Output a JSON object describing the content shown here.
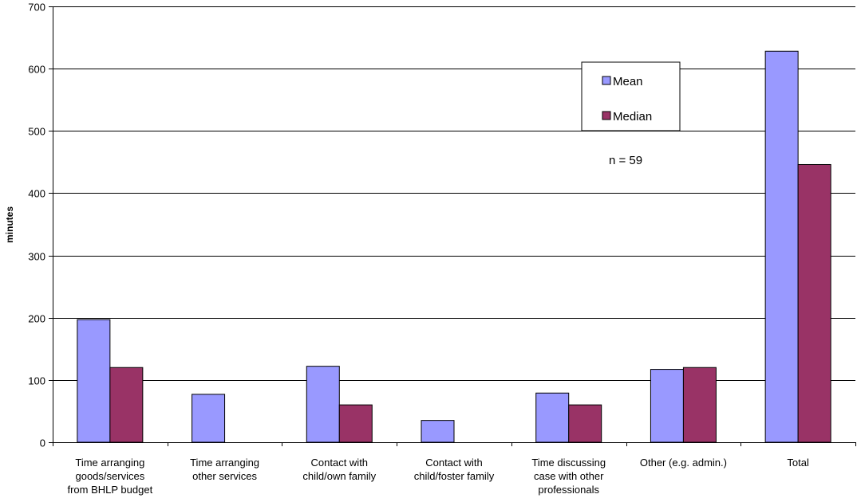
{
  "chart_data": {
    "type": "bar",
    "title": "",
    "xlabel": "",
    "ylabel": "minutes",
    "ylim": [
      0,
      700
    ],
    "yticks": [
      0,
      100,
      200,
      300,
      400,
      500,
      600,
      700
    ],
    "grid": true,
    "legend_position": "top-right",
    "categories": [
      [
        "Time arranging",
        "goods/services",
        "from BHLP budget"
      ],
      [
        "Time arranging",
        "other services"
      ],
      [
        "Contact with",
        "child/own family"
      ],
      [
        "Contact with",
        "child/foster family"
      ],
      [
        "Time discussing",
        "case with other",
        "professionals"
      ],
      [
        "Other (e.g. admin.)"
      ],
      [
        "Total"
      ]
    ],
    "series": [
      {
        "name": "Mean",
        "color": "#9999ff",
        "values": [
          197,
          77,
          122,
          35,
          79,
          117,
          628
        ]
      },
      {
        "name": "Median",
        "color": "#993366",
        "values": [
          120,
          0,
          60,
          0,
          60,
          120,
          446
        ]
      }
    ],
    "annotation": "n = 59"
  }
}
